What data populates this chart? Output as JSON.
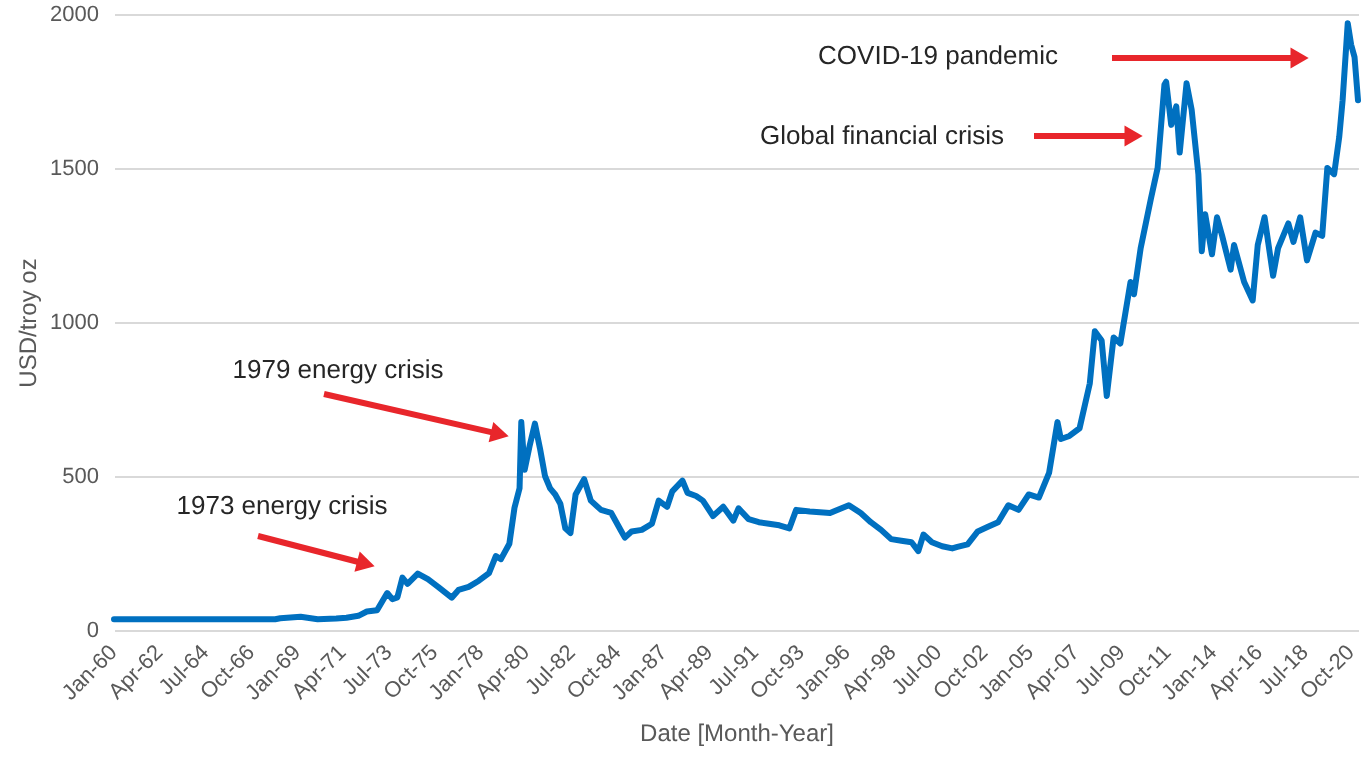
{
  "chart_data": {
    "type": "line",
    "xlabel": "Date [Month-Year]",
    "ylabel": "USD/troy oz",
    "xlim": [
      "1960-01",
      "2021-02"
    ],
    "ylim": [
      0,
      2000
    ],
    "yticks": [
      0,
      500,
      1000,
      1500,
      2000
    ],
    "xticks": [
      {
        "value": "1960-01",
        "label": "Jan-60"
      },
      {
        "value": "1962-04",
        "label": "Apr-62"
      },
      {
        "value": "1964-07",
        "label": "Jul-64"
      },
      {
        "value": "1966-10",
        "label": "Oct-66"
      },
      {
        "value": "1969-01",
        "label": "Jan-69"
      },
      {
        "value": "1971-04",
        "label": "Apr-71"
      },
      {
        "value": "1973-07",
        "label": "Jul-73"
      },
      {
        "value": "1975-10",
        "label": "Oct-75"
      },
      {
        "value": "1978-01",
        "label": "Jan-78"
      },
      {
        "value": "1980-04",
        "label": "Apr-80"
      },
      {
        "value": "1982-07",
        "label": "Jul-82"
      },
      {
        "value": "1984-10",
        "label": "Oct-84"
      },
      {
        "value": "1987-01",
        "label": "Jan-87"
      },
      {
        "value": "1989-04",
        "label": "Apr-89"
      },
      {
        "value": "1991-07",
        "label": "Jul-91"
      },
      {
        "value": "1993-10",
        "label": "Oct-93"
      },
      {
        "value": "1996-01",
        "label": "Jan-96"
      },
      {
        "value": "1998-04",
        "label": "Apr-98"
      },
      {
        "value": "2000-07",
        "label": "Jul-00"
      },
      {
        "value": "2002-10",
        "label": "Oct-02"
      },
      {
        "value": "2005-01",
        "label": "Jan-05"
      },
      {
        "value": "2007-04",
        "label": "Apr-07"
      },
      {
        "value": "2009-07",
        "label": "Jul-09"
      },
      {
        "value": "2011-10",
        "label": "Oct-11"
      },
      {
        "value": "2014-01",
        "label": "Jan-14"
      },
      {
        "value": "2016-04",
        "label": "Apr-16"
      },
      {
        "value": "2018-07",
        "label": "Jul-18"
      },
      {
        "value": "2020-10",
        "label": "Oct-20"
      }
    ],
    "grid": "y",
    "line_style": "solid",
    "marker": "none",
    "x": [
      "1960-01",
      "1967-12",
      "1968-03",
      "1969-03",
      "1970-01",
      "1970-12",
      "1971-06",
      "1972-01",
      "1972-06",
      "1972-12",
      "1973-06",
      "1973-09",
      "1973-12",
      "1974-03",
      "1974-06",
      "1974-12",
      "1975-06",
      "1975-12",
      "1976-08",
      "1976-12",
      "1977-06",
      "1977-12",
      "1978-06",
      "1978-10",
      "1979-01",
      "1979-06",
      "1979-09",
      "1979-12",
      "1980-01",
      "1980-03",
      "1980-06",
      "1980-09",
      "1980-12",
      "1981-03",
      "1981-06",
      "1981-09",
      "1981-12",
      "1982-03",
      "1982-06",
      "1982-09",
      "1983-02",
      "1983-06",
      "1983-12",
      "1984-06",
      "1984-12",
      "1985-02",
      "1985-06",
      "1985-12",
      "1986-06",
      "1986-10",
      "1987-03",
      "1987-06",
      "1987-12",
      "1988-03",
      "1988-08",
      "1988-12",
      "1989-06",
      "1989-12",
      "1990-06",
      "1990-09",
      "1991-03",
      "1991-09",
      "1992-03",
      "1992-09",
      "1993-03",
      "1993-07",
      "1994-03",
      "1995-03",
      "1996-02",
      "1996-09",
      "1997-03",
      "1997-09",
      "1998-03",
      "1998-09",
      "1999-03",
      "1999-07",
      "1999-10",
      "2000-03",
      "2000-09",
      "2001-03",
      "2001-06",
      "2001-12",
      "2002-06",
      "2002-12",
      "2003-06",
      "2003-12",
      "2004-06",
      "2004-12",
      "2005-06",
      "2005-12",
      "2006-05",
      "2006-07",
      "2006-12",
      "2007-06",
      "2007-12",
      "2008-03",
      "2008-07",
      "2008-10",
      "2009-02",
      "2009-06",
      "2009-12",
      "2010-02",
      "2010-06",
      "2010-12",
      "2011-04",
      "2011-08",
      "2011-09",
      "2011-12",
      "2012-03",
      "2012-05",
      "2012-09",
      "2012-12",
      "2013-04",
      "2013-06",
      "2013-08",
      "2013-12",
      "2014-03",
      "2014-06",
      "2014-11",
      "2015-01",
      "2015-07",
      "2015-12",
      "2016-03",
      "2016-07",
      "2016-12",
      "2017-03",
      "2017-09",
      "2017-12",
      "2018-04",
      "2018-08",
      "2019-01",
      "2019-05",
      "2019-08",
      "2019-12",
      "2020-03",
      "2020-05",
      "2020-08",
      "2020-10",
      "2020-12",
      "2021-02"
    ],
    "series": [
      {
        "color": "#0070c0",
        "values": [
          35,
          35,
          38,
          43,
          35,
          37,
          40,
          46,
          60,
          64,
          120,
          100,
          106,
          170,
          150,
          183,
          165,
          140,
          105,
          130,
          140,
          160,
          185,
          240,
          230,
          280,
          397,
          460,
          675,
          520,
          600,
          670,
          590,
          500,
          460,
          440,
          410,
          330,
          315,
          440,
          490,
          420,
          390,
          380,
          320,
          300,
          320,
          325,
          345,
          420,
          400,
          450,
          485,
          445,
          435,
          420,
          370,
          400,
          355,
          395,
          360,
          350,
          345,
          340,
          330,
          390,
          385,
          380,
          405,
          380,
          350,
          325,
          295,
          290,
          285,
          256,
          310,
          285,
          272,
          265,
          270,
          278,
          320,
          335,
          350,
          405,
          390,
          440,
          430,
          510,
          675,
          620,
          630,
          655,
          800,
          970,
          940,
          760,
          950,
          930,
          1130,
          1090,
          1240,
          1400,
          1500,
          1770,
          1780,
          1640,
          1700,
          1550,
          1775,
          1690,
          1480,
          1230,
          1350,
          1220,
          1340,
          1280,
          1170,
          1250,
          1130,
          1070,
          1250,
          1340,
          1150,
          1240,
          1320,
          1260,
          1340,
          1200,
          1290,
          1280,
          1500,
          1480,
          1600,
          1720,
          1970,
          1900,
          1860,
          1720
        ]
      }
    ],
    "annotations": [
      "1973 energy crisis",
      "1979 energy crisis",
      "Global financial crisis",
      "COVID-19 pandemic"
    ]
  }
}
